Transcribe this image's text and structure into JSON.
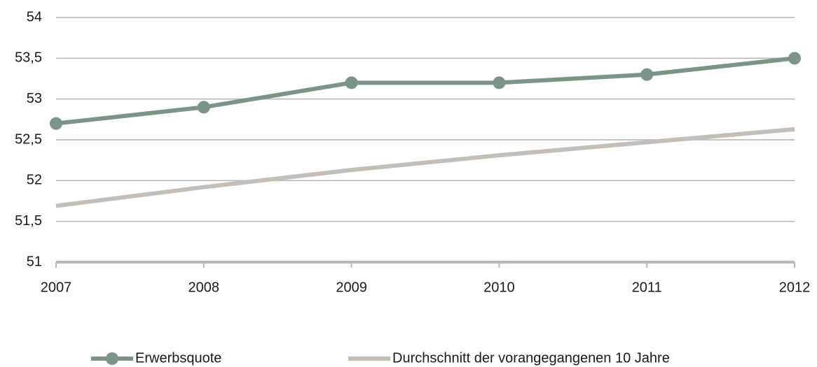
{
  "chart_data": {
    "type": "line",
    "categories": [
      "2007",
      "2008",
      "2009",
      "2010",
      "2011",
      "2012"
    ],
    "series": [
      {
        "name": "Erwerbsquote",
        "color": "#7a9485",
        "values": [
          52.7,
          52.9,
          53.2,
          53.2,
          53.3,
          53.5
        ],
        "marker": true
      },
      {
        "name": "Durchschnitt der vorangegangenen 10 Jahre",
        "color": "#c4beb9",
        "values": [
          51.69,
          51.92,
          52.13,
          52.31,
          52.47,
          52.63
        ],
        "marker": false
      }
    ],
    "ylim": [
      51,
      54
    ],
    "yticks": [
      51,
      {
        "value": 51.5,
        "label": "51,5"
      },
      52,
      {
        "value": 52.5,
        "label": "52,5"
      },
      53,
      {
        "value": 53.5,
        "label": "53,5"
      },
      54
    ],
    "grid": true
  }
}
